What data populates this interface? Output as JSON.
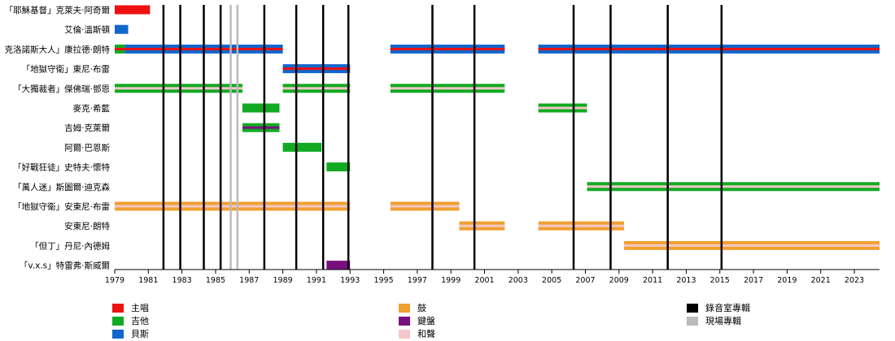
{
  "chart_data": {
    "type": "timeline",
    "xlim": [
      1979.0,
      2024.5
    ],
    "x_ticks": [
      "1979",
      "1981",
      "1983",
      "1985",
      "1987",
      "1989",
      "1991",
      "1993",
      "1995",
      "1997",
      "1999",
      "2001",
      "2003",
      "2005",
      "2007",
      "2009",
      "2011",
      "2013",
      "2015",
      "2017",
      "2019",
      "2021",
      "2023"
    ],
    "members": [
      {
        "name": "「耶穌基督」克萊夫·阿奇爾"
      },
      {
        "name": "艾倫·溫斯頓"
      },
      {
        "name": "克洛諾斯大人」康拉德·朗特",
        "display": "克洛諾斯大人」康拉德·朗特"
      },
      {
        "name": "「地獄守衛」東尼·布雷"
      },
      {
        "name": "「大獨裁者」傑佛瑞·鄧恩"
      },
      {
        "name": "麥克·希藍"
      },
      {
        "name": "吉姆·克萊爾"
      },
      {
        "name": "阿爾·巴恩斯"
      },
      {
        "name": "「好戰狂徒」史特夫·懷特"
      },
      {
        "name": "「萬人迷」斯圖爾·迪克森"
      },
      {
        "name": "「地獄守衛」安東尼·布雷"
      },
      {
        "name": "安東尼·朗特"
      },
      {
        "name": "「但丁」丹尼·內德姆"
      },
      {
        "name": "「v.x.s」特雷弗·斯威爾"
      }
    ],
    "roles": {
      "vocals": {
        "label": "主唱",
        "color": "#ee1111"
      },
      "guitar": {
        "label": "吉他",
        "color": "#11aa22"
      },
      "bass": {
        "label": "貝斯",
        "color": "#1166cc"
      },
      "drums": {
        "label": "鼓",
        "color": "#f0a030"
      },
      "keyboard": {
        "label": "鍵盤",
        "color": "#7a1080"
      },
      "backing": {
        "label": "和聲",
        "color": "#f4c8c8"
      }
    },
    "bars": [
      {
        "member": 0,
        "start": 1979.0,
        "end": 1981.1,
        "role": "vocals"
      },
      {
        "member": 1,
        "start": 1979.0,
        "end": 1979.8,
        "role": "bass"
      },
      {
        "member": 2,
        "start": 1979.0,
        "end": 1979.6,
        "role": "guitar",
        "stripe": "vocals"
      },
      {
        "member": 2,
        "start": 1979.6,
        "end": 1989.0,
        "role": "bass",
        "stripe": "vocals"
      },
      {
        "member": 2,
        "start": 1995.4,
        "end": 2002.2,
        "role": "bass",
        "stripe": "vocals"
      },
      {
        "member": 2,
        "start": 2004.2,
        "end": 2024.5,
        "role": "bass",
        "stripe": "vocals"
      },
      {
        "member": 3,
        "start": 1989.0,
        "end": 1993.0,
        "role": "bass",
        "stripe": "vocals"
      },
      {
        "member": 4,
        "start": 1979.0,
        "end": 1986.6,
        "role": "guitar",
        "stripe": "backing"
      },
      {
        "member": 4,
        "start": 1989.0,
        "end": 1993.0,
        "role": "guitar",
        "stripe": "backing"
      },
      {
        "member": 4,
        "start": 1995.4,
        "end": 2002.2,
        "role": "guitar",
        "stripe": "backing"
      },
      {
        "member": 5,
        "start": 1986.6,
        "end": 1988.8,
        "role": "guitar"
      },
      {
        "member": 5,
        "start": 2004.2,
        "end": 2007.1,
        "role": "guitar",
        "stripe": "backing"
      },
      {
        "member": 6,
        "start": 1986.6,
        "end": 1988.8,
        "role": "guitar",
        "stripe": "keyboard"
      },
      {
        "member": 7,
        "start": 1989.0,
        "end": 1991.3,
        "role": "guitar"
      },
      {
        "member": 8,
        "start": 1991.6,
        "end": 1993.0,
        "role": "guitar"
      },
      {
        "member": 9,
        "start": 2007.1,
        "end": 2024.5,
        "role": "guitar",
        "stripe": "backing"
      },
      {
        "member": 10,
        "start": 1979.0,
        "end": 1993.0,
        "role": "drums",
        "stripe": "backing"
      },
      {
        "member": 10,
        "start": 1995.4,
        "end": 1999.5,
        "role": "drums",
        "stripe": "backing"
      },
      {
        "member": 11,
        "start": 1999.5,
        "end": 2002.2,
        "role": "drums",
        "stripe": "backing"
      },
      {
        "member": 11,
        "start": 2004.2,
        "end": 2009.3,
        "role": "drums",
        "stripe": "backing"
      },
      {
        "member": 12,
        "start": 2009.3,
        "end": 2024.5,
        "role": "drums",
        "stripe": "backing"
      },
      {
        "member": 13,
        "start": 1991.6,
        "end": 1993.0,
        "role": "keyboard"
      }
    ],
    "studio_albums": [
      1981.9,
      1982.9,
      1984.3,
      1985.3,
      1987.9,
      1989.8,
      1991.4,
      1992.9,
      1997.9,
      2000.4,
      2006.3,
      2008.5,
      2011.9,
      2015.1
    ],
    "live_albums": [
      1985.9,
      1986.3
    ],
    "event_legend": {
      "studio": {
        "label": "錄音室專輯",
        "color": "#000000"
      },
      "live": {
        "label": "現場專輯",
        "color": "#bbbbbb"
      }
    }
  }
}
